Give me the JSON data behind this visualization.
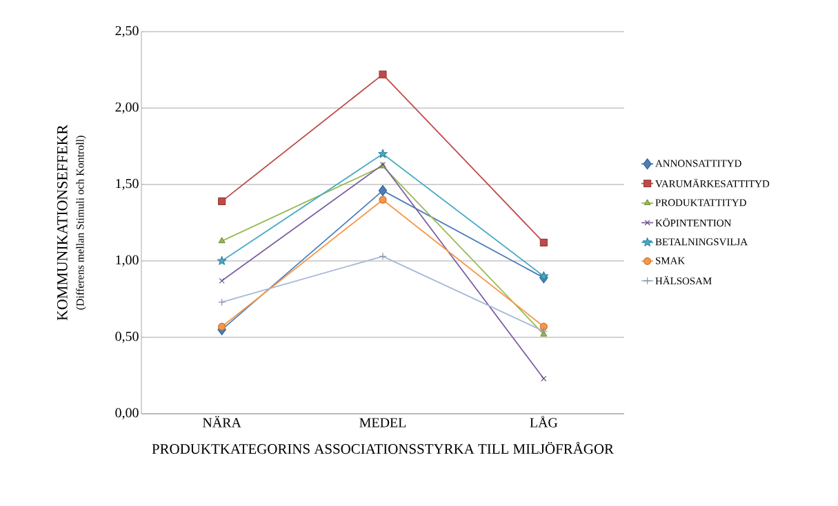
{
  "chart_data": {
    "type": "line",
    "xlabel": "PRODUKTKATEGORINS ASSOCIATIONSSTYRKA TILL MILJÖFRÅGOR",
    "ylabel": "KOMMUNIKATIONSEFFEKR",
    "annotations": [
      "(Differens mellan Stimuli och Kontroll)"
    ],
    "categories": [
      "NÄRA",
      "MEDEL",
      "LÅG"
    ],
    "series": [
      {
        "name": "ANNONSATTITYD",
        "color": "#4a7ebb",
        "marker": "diamond",
        "values": [
          0.55,
          1.46,
          0.89
        ]
      },
      {
        "name": "VARUMÄRKESATTITYD",
        "color": "#be4b48",
        "marker": "square",
        "values": [
          1.39,
          2.22,
          1.12
        ]
      },
      {
        "name": "PRODUKTATTITYD",
        "color": "#98b954",
        "marker": "triangle",
        "values": [
          1.13,
          1.62,
          0.52
        ]
      },
      {
        "name": "KÖPINTENTION",
        "color": "#7d60a0",
        "marker": "cross",
        "values": [
          0.87,
          1.63,
          0.23
        ]
      },
      {
        "name": "BETALNINGSVILJA",
        "color": "#46aac5",
        "marker": "star",
        "values": [
          1.0,
          1.7,
          0.9
        ]
      },
      {
        "name": "SMAK",
        "color": "#f79646",
        "marker": "circle",
        "values": [
          0.57,
          1.4,
          0.57
        ]
      },
      {
        "name": "HÄLSOSAM",
        "color": "#a5b8d8",
        "marker": "plus",
        "values": [
          0.73,
          1.03,
          0.54
        ]
      }
    ],
    "ylim": [
      0,
      2.5
    ],
    "yticks": [
      {
        "value": 0,
        "label": "0,00"
      },
      {
        "value": 0.5,
        "label": "0,50"
      },
      {
        "value": 1,
        "label": "1,00"
      },
      {
        "value": 1.5,
        "label": "1,50"
      },
      {
        "value": 2,
        "label": "2,00"
      },
      {
        "value": 2.5,
        "label": "2,50"
      }
    ],
    "grid": "y",
    "legend": "right",
    "line_style": "solid"
  }
}
